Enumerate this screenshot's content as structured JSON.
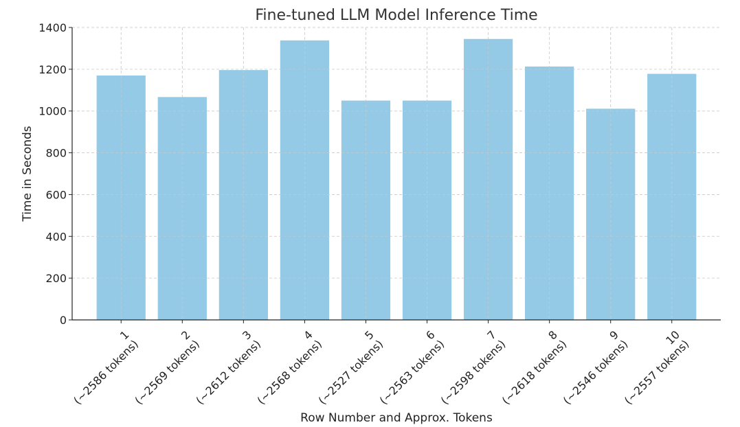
{
  "chart_data": {
    "type": "bar",
    "title": "Fine-tuned LLM Model Inference Time",
    "xlabel": "Row Number and Approx. Tokens",
    "ylabel": "Time in Seconds",
    "categories": [
      {
        "row": "1",
        "tokens": "(~2586 tokens)"
      },
      {
        "row": "2",
        "tokens": "(~2569 tokens)"
      },
      {
        "row": "3",
        "tokens": "(~2612 tokens)"
      },
      {
        "row": "4",
        "tokens": "(~2568 tokens)"
      },
      {
        "row": "5",
        "tokens": "(~2527 tokens)"
      },
      {
        "row": "6",
        "tokens": "(~2563 tokens)"
      },
      {
        "row": "7",
        "tokens": "(~2598 tokens)"
      },
      {
        "row": "8",
        "tokens": "(~2618 tokens)"
      },
      {
        "row": "9",
        "tokens": "(~2546 tokens)"
      },
      {
        "row": "10",
        "tokens": "(~2557 tokens)"
      }
    ],
    "values": [
      1170,
      1067,
      1196,
      1338,
      1050,
      1050,
      1345,
      1213,
      1011,
      1178
    ],
    "ylim": [
      0,
      1400
    ],
    "yticks": [
      0,
      200,
      400,
      600,
      800,
      1000,
      1200,
      1400
    ],
    "grid": true,
    "bar_color": "#95cae6"
  }
}
